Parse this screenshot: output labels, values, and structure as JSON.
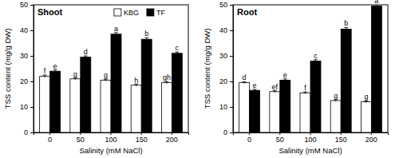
{
  "chart_data": [
    {
      "type": "bar",
      "title": "Shoot",
      "x_label": "Salinity (mM NaCl)",
      "y_label": "TSS content (mg/g DW)",
      "categories": [
        0,
        50,
        100,
        150,
        200
      ],
      "series": [
        {
          "name": "KBG",
          "color": "#ffffff",
          "values": [
            22,
            21,
            20.5,
            18.5,
            19.5
          ],
          "errors": [
            0.5,
            0.4,
            0.4,
            0.4,
            0.4
          ],
          "letters": [
            "f",
            "g",
            "g",
            "h",
            "gh"
          ]
        },
        {
          "name": "TF",
          "color": "#000000",
          "values": [
            24,
            29.5,
            38.5,
            36.5,
            31
          ],
          "errors": [
            0.5,
            0.5,
            0.6,
            0.6,
            0.5
          ],
          "letters": [
            "e",
            "d",
            "a",
            "b",
            "c"
          ]
        }
      ],
      "ylim": [
        0,
        50
      ],
      "yticks": [
        0,
        10,
        20,
        30,
        40,
        50
      ],
      "legend": "upper center"
    },
    {
      "type": "bar",
      "title": "Root",
      "x_label": "Salinity (mM NaCl)",
      "y_label": "TSS content (mg/g DW)",
      "categories": [
        0,
        50,
        100,
        150,
        200
      ],
      "series": [
        {
          "color": "#ffffff",
          "values": [
            19.5,
            16,
            15.5,
            12.5,
            12
          ],
          "errors": [
            0.4,
            0.4,
            0.4,
            0.4,
            0.4
          ],
          "letters": [
            "d",
            "ef",
            "f",
            "g",
            "g"
          ]
        },
        {
          "color": "#000000",
          "values": [
            16.5,
            20.5,
            28,
            40.5,
            49.5
          ],
          "errors": [
            0.4,
            0.5,
            0.5,
            0.6,
            0.6
          ],
          "letters": [
            "e",
            "e",
            "c",
            "b",
            "a"
          ]
        }
      ],
      "ylim": [
        0,
        50
      ],
      "yticks": [
        0,
        10,
        20,
        30,
        40,
        50
      ]
    }
  ]
}
